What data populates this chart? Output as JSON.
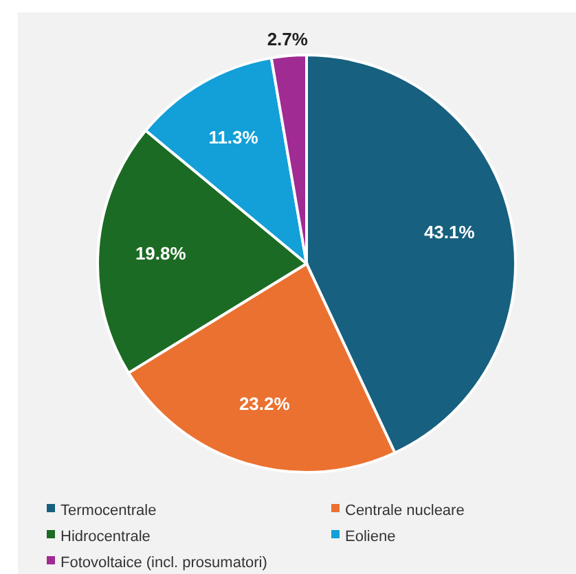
{
  "chart_data": {
    "type": "pie",
    "categories": [
      "Termocentrale",
      "Centrale nucleare",
      "Hidrocentrale",
      "Eoliene",
      "Fotovoltaice (incl. prosumatori)"
    ],
    "values": [
      43.1,
      23.2,
      19.8,
      11.3,
      2.7
    ],
    "colors": [
      "#17607f",
      "#eb7130",
      "#1c6b24",
      "#139fd8",
      "#a02b93"
    ],
    "value_labels": [
      "43.1%",
      "23.2%",
      "19.8%",
      "11.3%",
      "2.7%"
    ],
    "legend": "bottom"
  }
}
